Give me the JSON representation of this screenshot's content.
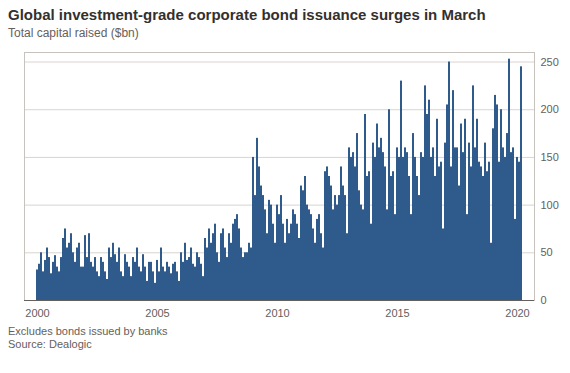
{
  "chart_data": {
    "type": "bar",
    "title": "Global investment-grade corporate bond issuance surges in March",
    "subtitle": "Total capital raised ($bn)",
    "notes": "Excludes bonds issued by banks",
    "source": "Source: Dealogic",
    "color": "#2f5a8c",
    "ylim": [
      0,
      260
    ],
    "yticks": [
      0,
      50,
      100,
      150,
      200,
      250
    ],
    "grid": true,
    "categories": [
      "2000",
      null,
      null,
      null,
      null,
      null,
      null,
      null,
      null,
      null,
      null,
      null,
      null,
      null,
      null,
      null,
      null,
      null,
      null,
      null,
      null,
      null,
      null,
      null,
      null,
      null,
      null,
      null,
      null,
      null,
      null,
      null,
      null,
      null,
      null,
      null,
      null,
      null,
      null,
      null,
      null,
      null,
      null,
      null,
      null,
      null,
      null,
      null,
      null,
      null,
      null,
      null,
      null,
      null,
      null,
      null,
      null,
      null,
      null,
      null,
      "2005",
      null,
      null,
      null,
      null,
      null,
      null,
      null,
      null,
      null,
      null,
      null,
      null,
      null,
      null,
      null,
      null,
      null,
      null,
      null,
      null,
      null,
      null,
      null,
      null,
      null,
      null,
      null,
      null,
      null,
      null,
      null,
      null,
      null,
      null,
      null,
      null,
      null,
      null,
      null,
      null,
      null,
      null,
      null,
      null,
      null,
      null,
      null,
      null,
      null,
      null,
      null,
      null,
      null,
      null,
      null,
      null,
      null,
      null,
      null,
      "2010",
      null,
      null,
      null,
      null,
      null,
      null,
      null,
      null,
      null,
      null,
      null,
      null,
      null,
      null,
      null,
      null,
      null,
      null,
      null,
      null,
      null,
      null,
      null,
      null,
      null,
      null,
      null,
      null,
      null,
      null,
      null,
      null,
      null,
      null,
      null,
      null,
      null,
      null,
      null,
      null,
      null,
      null,
      null,
      null,
      null,
      null,
      null,
      null,
      null,
      null,
      null,
      null,
      null,
      null,
      null,
      null,
      null,
      null,
      null,
      "2015",
      null,
      null,
      null,
      null,
      null,
      null,
      null,
      null,
      null,
      null,
      null,
      null,
      null,
      null,
      null,
      null,
      null,
      null,
      null,
      null,
      null,
      null,
      null,
      null,
      null,
      null,
      null,
      null,
      null,
      null,
      null,
      null,
      null,
      null,
      null,
      null,
      null,
      null,
      null,
      null,
      null,
      null,
      null,
      null,
      null,
      null,
      null,
      null,
      null,
      null,
      null,
      null,
      null,
      null,
      null,
      null,
      null,
      null,
      null,
      "2020",
      null,
      null
    ],
    "values": [
      32,
      38,
      50,
      30,
      42,
      55,
      45,
      28,
      40,
      47,
      35,
      30,
      45,
      65,
      75,
      55,
      60,
      70,
      50,
      40,
      55,
      60,
      35,
      35,
      68,
      45,
      70,
      40,
      35,
      45,
      30,
      25,
      45,
      40,
      30,
      22,
      55,
      45,
      60,
      48,
      40,
      55,
      30,
      25,
      48,
      40,
      35,
      25,
      45,
      40,
      55,
      35,
      30,
      48,
      35,
      20,
      40,
      40,
      30,
      18,
      42,
      30,
      55,
      35,
      30,
      40,
      35,
      28,
      38,
      40,
      30,
      20,
      50,
      40,
      60,
      42,
      45,
      55,
      38,
      35,
      50,
      45,
      38,
      25,
      65,
      55,
      75,
      60,
      70,
      80,
      50,
      40,
      70,
      75,
      55,
      45,
      70,
      60,
      80,
      85,
      90,
      75,
      55,
      45,
      50,
      50,
      60,
      55,
      150,
      110,
      170,
      140,
      120,
      110,
      95,
      70,
      105,
      100,
      80,
      60,
      100,
      90,
      110,
      80,
      60,
      85,
      70,
      80,
      95,
      90,
      80,
      65,
      120,
      115,
      130,
      100,
      95,
      90,
      75,
      60,
      85,
      90,
      70,
      55,
      135,
      140,
      130,
      120,
      95,
      110,
      100,
      110,
      140,
      120,
      110,
      70,
      160,
      150,
      155,
      140,
      175,
      115,
      100,
      95,
      195,
      130,
      135,
      80,
      165,
      150,
      185,
      160,
      170,
      155,
      140,
      95,
      200,
      130,
      135,
      90,
      160,
      150,
      230,
      150,
      160,
      155,
      130,
      90,
      175,
      150,
      130,
      110,
      155,
      150,
      225,
      195,
      210,
      150,
      160,
      130,
      190,
      140,
      145,
      75,
      165,
      205,
      250,
      140,
      220,
      160,
      160,
      120,
      185,
      155,
      190,
      90,
      165,
      140,
      225,
      160,
      190,
      145,
      140,
      130,
      165,
      135,
      145,
      60,
      180,
      215,
      205,
      145,
      200,
      160,
      150,
      175,
      253,
      155,
      160,
      85,
      150,
      145,
      245
    ]
  }
}
